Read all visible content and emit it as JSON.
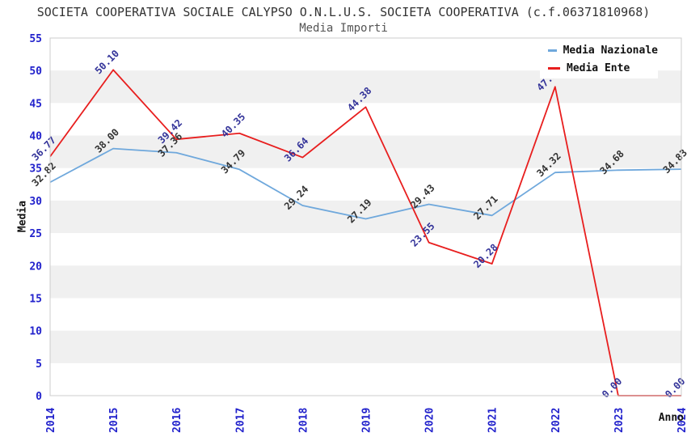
{
  "header": {
    "title": "SOCIETA COOPERATIVA SOCIALE CALYPSO O.N.L.U.S. SOCIETA COOPERATIVA (c.f.06371810968)",
    "subtitle": "Media Importi"
  },
  "chart_data": {
    "type": "line",
    "title": "SOCIETA COOPERATIVA SOCIALE CALYPSO O.N.L.U.S. SOCIETA COOPERATIVA (c.f.06371810968)",
    "subtitle": "Media Importi",
    "xlabel": "Anno",
    "ylabel": "Media",
    "x": [
      2014,
      2015,
      2016,
      2017,
      2018,
      2019,
      2020,
      2021,
      2022,
      2023,
      2024
    ],
    "ylim": [
      0,
      55
    ],
    "ytick_step": 5,
    "grid": "alternating-bands",
    "band_color": "#f0f0f0",
    "plot_border_color": "#cccccc",
    "axis_tick_color": "#2222cc",
    "legend_position": "top-right",
    "series": [
      {
        "name": "Media Nazionale",
        "color": "#6fa8dc",
        "label_color": "#333333",
        "values": [
          32.82,
          38.0,
          37.36,
          34.79,
          29.24,
          27.19,
          29.43,
          27.71,
          34.32,
          34.68,
          34.83
        ],
        "labels": [
          "32.82",
          "38.00",
          "37.36",
          "34.79",
          "29.24",
          "27.19",
          "29.43",
          "27.71",
          "34.32",
          "34.68",
          "34.83"
        ]
      },
      {
        "name": "Media Ente",
        "color": "#e81e1e",
        "label_color": "#333399",
        "values": [
          36.77,
          50.1,
          39.42,
          40.35,
          36.64,
          44.38,
          23.55,
          20.28,
          47.5,
          0.0,
          0.0
        ],
        "labels": [
          "36.77",
          "50.10",
          "39.42",
          "40.35",
          "36.64",
          "44.38",
          "23.55",
          "20.28",
          null,
          "0.00",
          "0.00"
        ]
      }
    ]
  },
  "legend": {
    "items": [
      {
        "label": "Media Nazionale",
        "color": "#6fa8dc"
      },
      {
        "label": "Media Ente",
        "color": "#e81e1e"
      }
    ]
  }
}
